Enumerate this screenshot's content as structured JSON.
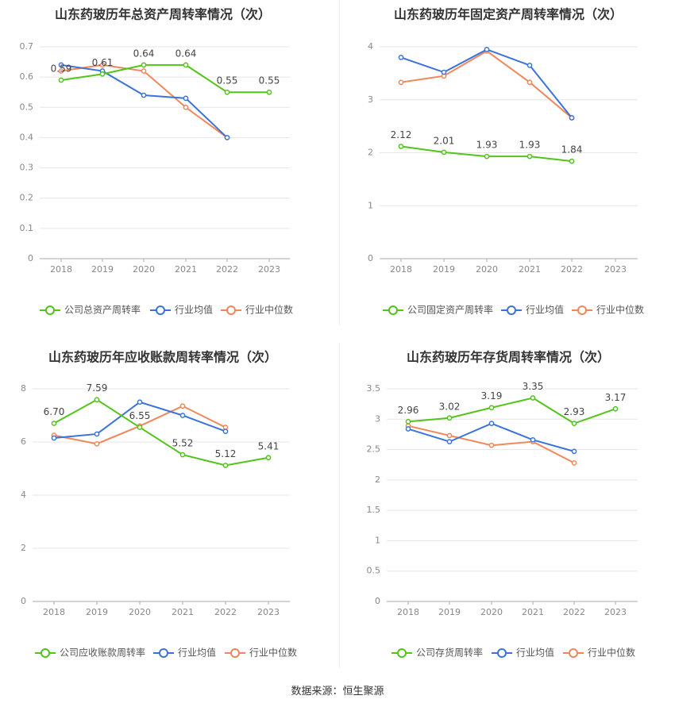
{
  "colors": {
    "company": "#52c41a",
    "avg": "#3b73db",
    "median": "#f0875a",
    "grid": "#e6e6e6",
    "axis": "#888888",
    "text": "#555555",
    "title": "#333333"
  },
  "source_text": "数据来源：恒生聚源",
  "chart_data": [
    {
      "type": "line",
      "title": "山东药玻历年总资产周转率情况（次）",
      "categories": [
        "2018",
        "2019",
        "2020",
        "2021",
        "2022",
        "2023"
      ],
      "ylim": [
        0,
        0.7
      ],
      "yticks": [
        "0",
        "0.1",
        "0.2",
        "0.3",
        "0.4",
        "0.5",
        "0.6",
        "0.7"
      ],
      "series": [
        {
          "name": "公司总资产周转率",
          "role": "company",
          "values": [
            0.59,
            0.61,
            0.64,
            0.64,
            0.55,
            0.55
          ],
          "labels": [
            "0.59",
            "0.61",
            "0.64",
            "0.64",
            "0.55",
            "0.55"
          ]
        },
        {
          "name": "行业均值",
          "role": "avg",
          "values": [
            0.64,
            0.62,
            0.54,
            0.53,
            0.4,
            null
          ]
        },
        {
          "name": "行业中位数",
          "role": "median",
          "values": [
            0.62,
            0.64,
            0.62,
            0.5,
            0.4,
            null
          ]
        }
      ],
      "legend": "bottom"
    },
    {
      "type": "line",
      "title": "山东药玻历年固定资产周转率情况（次）",
      "categories": [
        "2018",
        "2019",
        "2020",
        "2021",
        "2022",
        "2023"
      ],
      "ylim": [
        0,
        4
      ],
      "yticks": [
        "0",
        "1",
        "2",
        "3",
        "4"
      ],
      "series": [
        {
          "name": "公司固定资产周转率",
          "role": "company",
          "values": [
            2.12,
            2.01,
            1.93,
            1.93,
            1.84,
            null
          ],
          "labels": [
            "2.12",
            "2.01",
            "1.93",
            "1.93",
            "1.84",
            ""
          ]
        },
        {
          "name": "行业均值",
          "role": "avg",
          "values": [
            3.8,
            3.52,
            3.95,
            3.65,
            2.66,
            null
          ]
        },
        {
          "name": "行业中位数",
          "role": "median",
          "values": [
            3.33,
            3.45,
            3.92,
            3.33,
            2.66,
            null
          ]
        }
      ],
      "legend": "bottom"
    },
    {
      "type": "line",
      "title": "山东药玻历年应收账款周转率情况（次）",
      "categories": [
        "2018",
        "2019",
        "2020",
        "2021",
        "2022",
        "2023"
      ],
      "ylim": [
        0,
        8
      ],
      "yticks": [
        "0",
        "2",
        "4",
        "6",
        "8"
      ],
      "series": [
        {
          "name": "公司应收账款周转率",
          "role": "company",
          "values": [
            6.7,
            7.59,
            6.55,
            5.52,
            5.12,
            5.41
          ],
          "labels": [
            "6.70",
            "7.59",
            "6.55",
            "5.52",
            "5.12",
            "5.41"
          ]
        },
        {
          "name": "行业均值",
          "role": "avg",
          "values": [
            6.15,
            6.3,
            7.5,
            7.0,
            6.4,
            null
          ]
        },
        {
          "name": "行业中位数",
          "role": "median",
          "values": [
            6.25,
            5.93,
            6.6,
            7.35,
            6.55,
            null
          ]
        }
      ],
      "legend": "bottom"
    },
    {
      "type": "line",
      "title": "山东药玻历年存货周转率情况（次）",
      "categories": [
        "2018",
        "2019",
        "2020",
        "2021",
        "2022",
        "2023"
      ],
      "ylim": [
        0,
        3.5
      ],
      "yticks": [
        "0",
        "0.5",
        "1",
        "1.5",
        "2",
        "2.5",
        "3",
        "3.5"
      ],
      "series": [
        {
          "name": "公司存货周转率",
          "role": "company",
          "values": [
            2.96,
            3.02,
            3.19,
            3.35,
            2.93,
            3.17
          ],
          "labels": [
            "2.96",
            "3.02",
            "3.19",
            "3.35",
            "2.93",
            "3.17"
          ]
        },
        {
          "name": "行业均值",
          "role": "avg",
          "values": [
            2.84,
            2.63,
            2.93,
            2.66,
            2.47,
            null
          ]
        },
        {
          "name": "行业中位数",
          "role": "median",
          "values": [
            2.89,
            2.73,
            2.57,
            2.63,
            2.28,
            null
          ]
        }
      ],
      "legend": "bottom"
    }
  ]
}
